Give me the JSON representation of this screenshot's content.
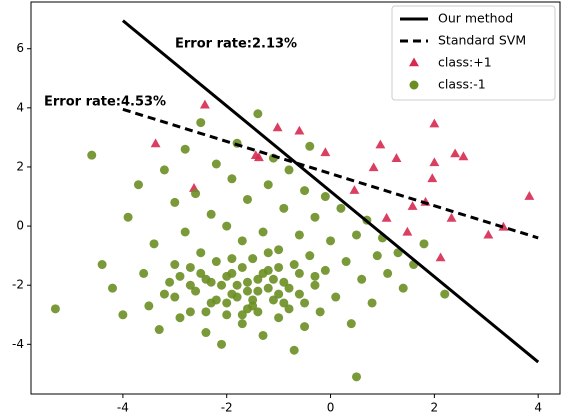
{
  "chart_data": {
    "type": "scatter",
    "annotations": [
      "Error rate:2.13%",
      "Error rate:4.53%"
    ],
    "xlim": [
      -5.77,
      4.42
    ],
    "ylim": [
      -5.68,
      7.58
    ],
    "xticks": [
      -4,
      -2,
      0,
      2,
      4
    ],
    "yticks": [
      -4,
      -2,
      0,
      2,
      4,
      6
    ],
    "legend": "upper right",
    "series": [
      {
        "name": "Our method",
        "kind": "line",
        "line_style": "solid",
        "color": "#000000",
        "x": [
          -4,
          4
        ],
        "values": [
          6.95,
          -4.6
        ]
      },
      {
        "name": "Standard SVM",
        "kind": "line",
        "line_style": "dashed",
        "color": "#000000",
        "x": [
          -4,
          4
        ],
        "values": [
          3.95,
          -0.4
        ]
      },
      {
        "name": "class:+1",
        "kind": "points",
        "marker": "triangle",
        "color": "#d62a50",
        "x": [
          -3.37,
          -2.42,
          -2.63,
          -1.44,
          -1.38,
          -1.02,
          -0.6,
          -0.1,
          0.46,
          0.83,
          0.96,
          1.27,
          1.08,
          1.48,
          1.58,
          1.83,
          1.96,
          2.0,
          2.0,
          2.12,
          2.4,
          2.56,
          3.04,
          3.33,
          3.83,
          2.33
        ],
        "values": [
          2.78,
          4.09,
          1.27,
          2.38,
          2.31,
          3.32,
          3.21,
          2.48,
          1.2,
          1.97,
          2.74,
          2.28,
          0.26,
          -0.21,
          0.66,
          0.8,
          1.6,
          2.14,
          3.45,
          -1.08,
          2.44,
          2.34,
          -0.31,
          -0.04,
          1.0,
          0.26
        ]
      },
      {
        "name": "class:-1",
        "kind": "points",
        "marker": "circle",
        "color": "#6b8e23",
        "x": [
          -5.3,
          0.5,
          -4.6,
          -4.4,
          -4.2,
          -4.0,
          -3.9,
          -3.7,
          -3.6,
          -3.5,
          -3.4,
          -3.3,
          -3.2,
          -3.1,
          -3.0,
          -3.0,
          -2.9,
          -2.8,
          -2.8,
          -2.7,
          -2.7,
          -2.6,
          -2.6,
          -2.5,
          -2.5,
          -2.4,
          -2.4,
          -2.3,
          -2.3,
          -2.2,
          -2.2,
          -2.1,
          -2.1,
          -2.0,
          -2.0,
          -1.9,
          -1.9,
          -1.8,
          -1.8,
          -1.7,
          -1.7,
          -1.6,
          -1.6,
          -1.5,
          -1.5,
          -1.4,
          -1.4,
          -1.3,
          -1.3,
          -1.2,
          -1.2,
          -1.1,
          -1.1,
          -1.0,
          -1.0,
          -0.9,
          -0.9,
          -0.8,
          -0.8,
          -0.7,
          -0.7,
          -0.6,
          -0.6,
          -0.5,
          -0.5,
          -0.4,
          -0.4,
          -0.3,
          -0.3,
          -0.2,
          -0.1,
          -0.1,
          0.0,
          0.1,
          0.2,
          0.3,
          0.4,
          0.5,
          0.6,
          0.7,
          0.8,
          0.9,
          1.0,
          1.1,
          1.3,
          1.4,
          1.6,
          1.8,
          2.2,
          -1.6,
          -1.4,
          -1.8,
          -2.0,
          -1.2,
          -1.5,
          -1.9,
          -1.3,
          -1.7,
          -2.2,
          -1.0,
          -2.5,
          -1.1,
          -0.8,
          -2.3,
          -1.6,
          -2.7,
          -0.6,
          -2.0,
          -1.4,
          -1.9,
          -0.9,
          -1.2,
          -2.9,
          -0.5,
          -3.2,
          -1.7,
          -2.4,
          -0.3,
          -3.0,
          -1.0
        ],
        "values": [
          -2.8,
          -5.1,
          2.4,
          -1.3,
          -2.1,
          -3.0,
          0.3,
          1.4,
          -1.6,
          -2.7,
          -0.6,
          -3.5,
          1.9,
          -1.9,
          0.8,
          -2.4,
          -3.1,
          2.6,
          -0.2,
          -1.4,
          -2.9,
          1.1,
          -2.2,
          3.5,
          -0.9,
          -1.8,
          -3.6,
          0.4,
          -2.6,
          2.1,
          -1.2,
          -2.0,
          -4.0,
          0.0,
          -3.0,
          1.6,
          -1.6,
          -2.4,
          2.8,
          -0.5,
          -3.3,
          -1.9,
          0.9,
          -2.7,
          -1.1,
          3.8,
          -2.2,
          -0.2,
          -3.7,
          1.4,
          -1.5,
          -2.5,
          2.3,
          -0.8,
          -3.1,
          -1.9,
          0.6,
          -2.8,
          1.9,
          -1.3,
          -4.2,
          -0.3,
          -2.3,
          1.2,
          -3.4,
          -1.0,
          2.7,
          -2.0,
          0.3,
          -2.9,
          -1.5,
          1.0,
          -0.5,
          -2.4,
          0.6,
          -1.2,
          -3.3,
          -0.3,
          -1.8,
          0.2,
          -2.6,
          -1.0,
          -0.4,
          -1.6,
          -0.9,
          -2.1,
          -1.3,
          -0.6,
          -2.3,
          -2.2,
          -1.8,
          -2.0,
          -1.7,
          -2.1,
          -2.5,
          -2.3,
          -1.6,
          -1.4,
          -2.5,
          -2.3,
          -1.6,
          -1.8,
          -2.1,
          -1.9,
          -2.8,
          -2.0,
          -1.6,
          -2.6,
          -2.9,
          -1.1,
          -2.6,
          -0.9,
          -1.7,
          -2.6,
          -2.3,
          -3.0,
          -2.9,
          -1.7,
          -1.3,
          -1.4
        ]
      }
    ]
  }
}
